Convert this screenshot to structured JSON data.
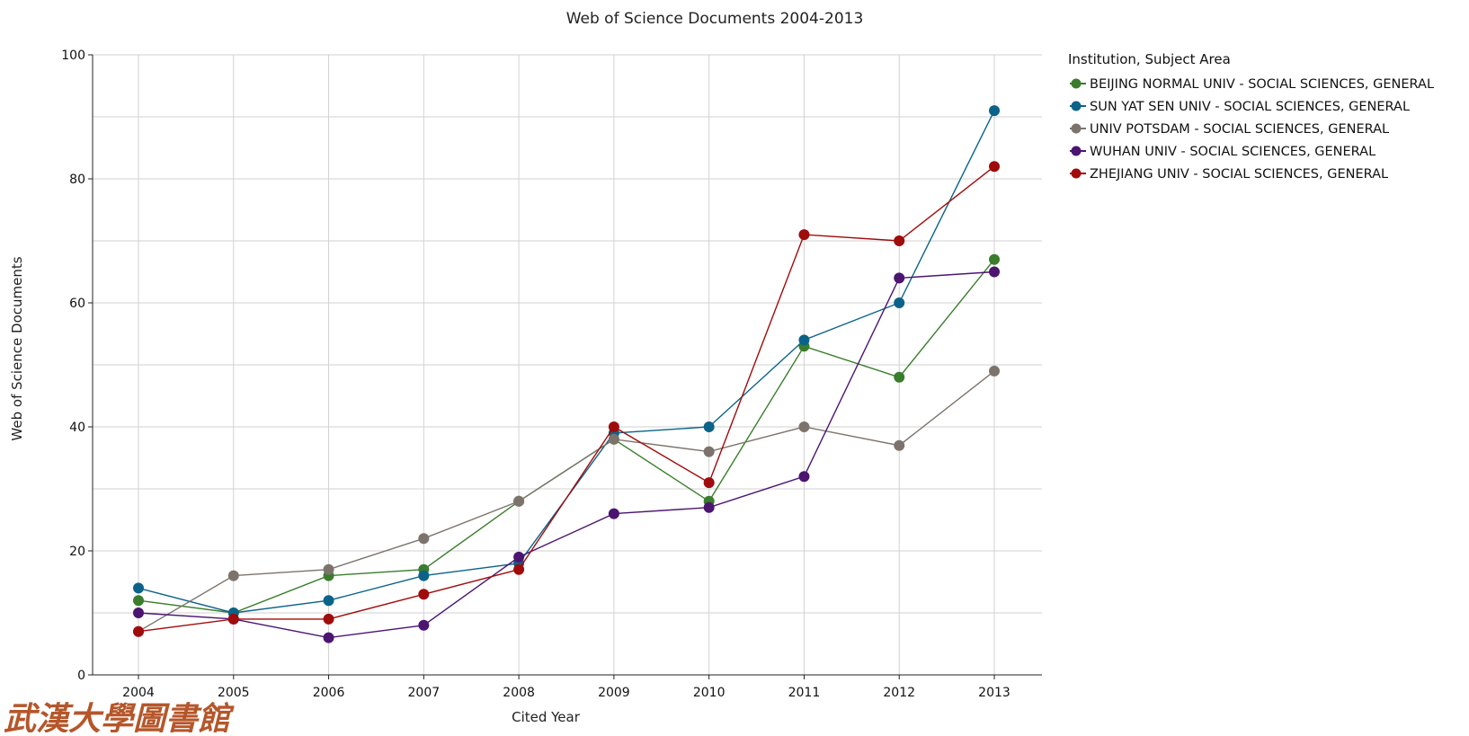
{
  "chart_data": {
    "type": "line",
    "title": "Web of Science Documents 2004-2013",
    "xlabel": "Cited Year",
    "ylabel": "Web of Science Documents",
    "x": [
      "2004",
      "2005",
      "2006",
      "2007",
      "2008",
      "2009",
      "2010",
      "2011",
      "2012",
      "2013"
    ],
    "ylim": [
      0,
      100
    ],
    "yticks": [
      0,
      20,
      40,
      60,
      80,
      100
    ],
    "grid": true,
    "legend_title": "Institution, Subject Area",
    "legend_position": "right",
    "series": [
      {
        "name": "BEIJING NORMAL UNIV - SOCIAL SCIENCES, GENERAL",
        "color": "#3a7d2c",
        "values": [
          12,
          10,
          16,
          17,
          28,
          38,
          28,
          53,
          48,
          67
        ]
      },
      {
        "name": "SUN YAT SEN UNIV - SOCIAL SCIENCES, GENERAL",
        "color": "#0b6389",
        "values": [
          14,
          10,
          12,
          16,
          18,
          39,
          40,
          54,
          60,
          91
        ]
      },
      {
        "name": "UNIV POTSDAM - SOCIAL SCIENCES, GENERAL",
        "color": "#7c746c",
        "values": [
          7,
          16,
          17,
          22,
          28,
          38,
          36,
          40,
          37,
          49
        ]
      },
      {
        "name": "WUHAN UNIV - SOCIAL SCIENCES, GENERAL",
        "color": "#4b1570",
        "values": [
          10,
          9,
          6,
          8,
          19,
          26,
          27,
          32,
          64,
          65
        ]
      },
      {
        "name": "ZHEJIANG UNIV - SOCIAL SCIENCES, GENERAL",
        "color": "#a00b0b",
        "values": [
          7,
          9,
          9,
          13,
          17,
          40,
          31,
          71,
          70,
          82
        ]
      }
    ]
  },
  "watermark": {
    "text": "武漢大學圖書館"
  }
}
